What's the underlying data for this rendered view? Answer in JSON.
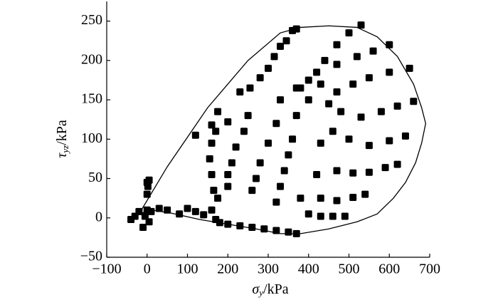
{
  "chart_data": {
    "type": "scatter",
    "x_label": {
      "symbol": "σ",
      "subscript": "y",
      "unit": "/kPa"
    },
    "y_label": {
      "symbol": "τ",
      "subscript": "yz",
      "unit": "/kPa"
    },
    "xlim": [
      -100,
      700
    ],
    "ylim": [
      -50,
      275
    ],
    "xticks": [
      {
        "value": -100,
        "label": "−100"
      },
      0,
      100,
      200,
      300,
      400,
      500,
      600,
      700
    ],
    "yticks": [
      {
        "value": -50,
        "label": "−50"
      },
      0,
      50,
      100,
      150,
      200,
      250
    ],
    "series": [
      {
        "mode": "line",
        "color": "#000000",
        "x": [
          -20,
          50,
          150,
          250,
          330,
          380,
          450,
          520,
          570,
          620,
          660,
          680,
          690,
          680,
          665,
          640,
          610,
          570,
          520,
          450,
          380,
          330,
          270,
          200,
          130,
          60,
          10,
          -20
        ],
        "values": [
          5,
          65,
          140,
          200,
          235,
          242,
          244,
          242,
          230,
          205,
          170,
          140,
          120,
          95,
          70,
          45,
          25,
          5,
          -5,
          -14,
          -20,
          -20,
          -14,
          -8,
          -2,
          6,
          10,
          5
        ]
      },
      {
        "mode": "markers",
        "color": "#000000",
        "x": [
          -40,
          -30,
          -20,
          -10,
          0,
          5,
          -5,
          10,
          30,
          50,
          80,
          100,
          120,
          140,
          160,
          170,
          180,
          200,
          230,
          260,
          290,
          320,
          350,
          370,
          0,
          2,
          5,
          0,
          120,
          160,
          175,
          200,
          230,
          255,
          280,
          300,
          315,
          330,
          345,
          360,
          370,
          400,
          440,
          470,
          500,
          530,
          380,
          420,
          470,
          520,
          560,
          600,
          430,
          470,
          510,
          550,
          600,
          650,
          400,
          450,
          480,
          530,
          580,
          620,
          660,
          430,
          460,
          500,
          550,
          600,
          640,
          420,
          470,
          510,
          550,
          590,
          620,
          380,
          430,
          470,
          510,
          540,
          400,
          430,
          460,
          490,
          370,
          370,
          360,
          350,
          340,
          330,
          320,
          330,
          320,
          300,
          280,
          270,
          260,
          250,
          240,
          220,
          210,
          200,
          200,
          170,
          160,
          155,
          160,
          165,
          175
        ],
        "values": [
          -2,
          2,
          8,
          -12,
          10,
          -5,
          2,
          8,
          12,
          10,
          5,
          12,
          8,
          4,
          10,
          -2,
          -6,
          -8,
          -10,
          -12,
          -14,
          -16,
          -18,
          -20,
          30,
          40,
          48,
          45,
          105,
          118,
          135,
          122,
          160,
          165,
          178,
          190,
          205,
          218,
          225,
          238,
          240,
          175,
          200,
          220,
          235,
          245,
          165,
          185,
          195,
          205,
          212,
          220,
          170,
          160,
          170,
          178,
          185,
          190,
          150,
          145,
          135,
          128,
          135,
          142,
          148,
          95,
          110,
          100,
          92,
          98,
          104,
          55,
          60,
          57,
          58,
          64,
          68,
          25,
          25,
          22,
          26,
          30,
          5,
          2,
          2,
          2,
          165,
          130,
          100,
          80,
          60,
          40,
          20,
          150,
          120,
          95,
          70,
          50,
          35,
          130,
          110,
          90,
          70,
          55,
          40,
          110,
          95,
          75,
          55,
          35,
          25
        ]
      }
    ]
  }
}
